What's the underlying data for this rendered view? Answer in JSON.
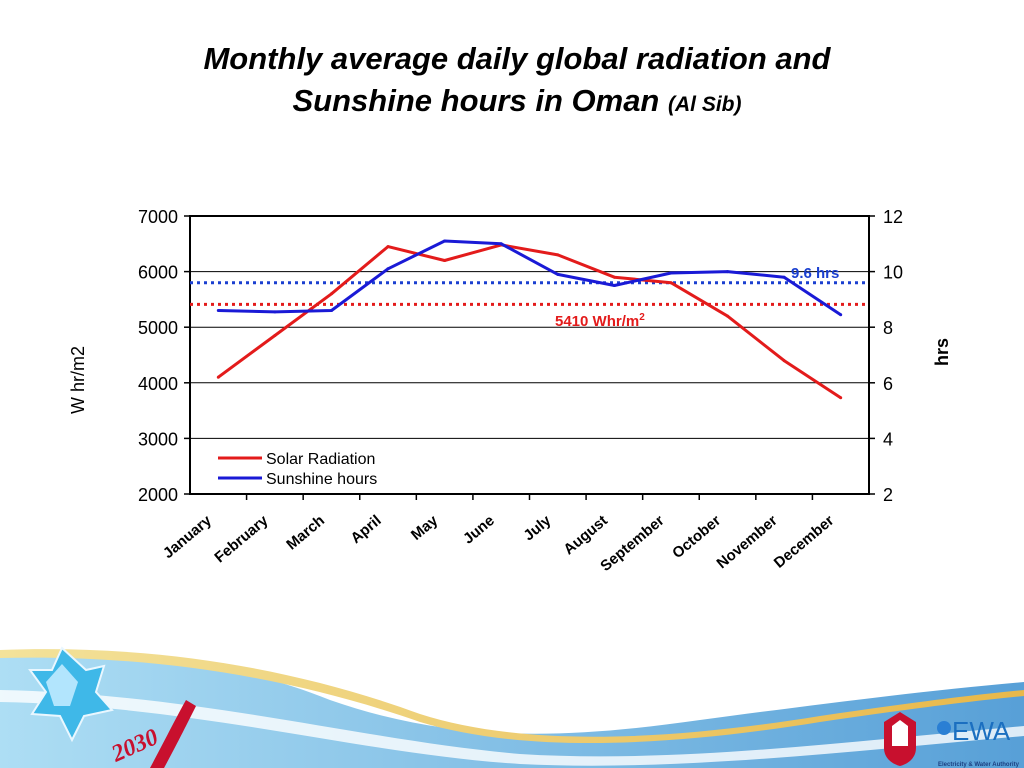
{
  "slide": {
    "title_line1": "Monthly average daily global radiation and",
    "title_line2": "Sunshine hours in Oman",
    "title_sub": "(Al Sib)"
  },
  "chart_data": {
    "type": "line",
    "categories": [
      "January",
      "February",
      "March",
      "April",
      "May",
      "June",
      "July",
      "August",
      "September",
      "October",
      "November",
      "December"
    ],
    "series": [
      {
        "name": "Solar Radiation",
        "axis": "left",
        "color": "#e31b1b",
        "values": [
          4100,
          4850,
          5600,
          6450,
          6200,
          6480,
          6300,
          5900,
          5800,
          5200,
          4400,
          3730
        ]
      },
      {
        "name": "Sunshine hours",
        "axis": "right",
        "color": "#1a1ad6",
        "values": [
          8.6,
          8.55,
          8.6,
          10.1,
          11.1,
          11.0,
          9.9,
          9.5,
          9.95,
          10.0,
          9.8,
          8.45
        ]
      }
    ],
    "ylabel": "W hr/m2",
    "y2label": "hrs",
    "ylim": [
      2000,
      7000
    ],
    "y2lim": [
      2,
      12
    ],
    "yticks": [
      "7000",
      "6000",
      "5000",
      "4000",
      "3000",
      "2000"
    ],
    "y2ticks": [
      "12",
      "10",
      "8",
      "6",
      "4",
      "2"
    ],
    "grid": true,
    "legend_position": "bottom-left",
    "references": [
      {
        "axis": "left",
        "value": 5410,
        "label": "5410 Whr/m",
        "label_sup": "2",
        "color": "#e31b1b"
      },
      {
        "axis": "right",
        "value": 9.6,
        "label": "9.6 hrs",
        "color": "#1a3fd0"
      }
    ]
  },
  "footer": {
    "badge_text": "2030",
    "logo_text": "EWA",
    "logo_subtext": "Electricity & Water Authority"
  }
}
